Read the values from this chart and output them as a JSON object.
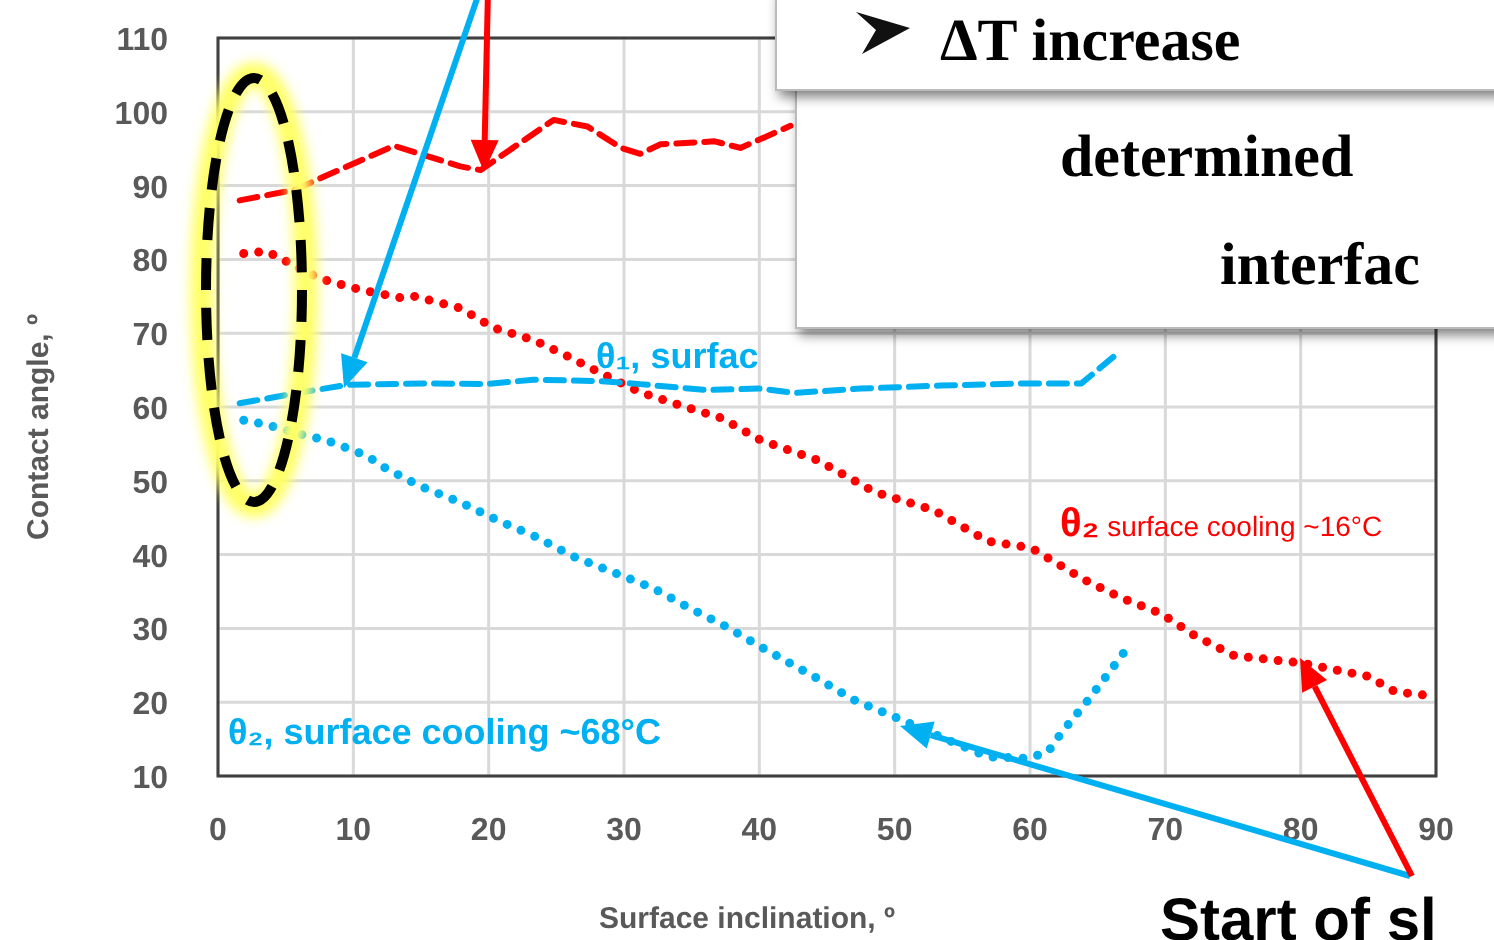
{
  "chart_data": {
    "type": "line",
    "xlabel": "Surface inclination, º",
    "ylabel": "Contact angle, º",
    "xlim": [
      0,
      90
    ],
    "ylim": [
      10,
      110
    ],
    "xticks": [
      0,
      10,
      20,
      30,
      40,
      50,
      60,
      70,
      80,
      90
    ],
    "yticks": [
      10,
      20,
      30,
      40,
      50,
      60,
      70,
      80,
      90,
      100,
      110
    ],
    "grid": true,
    "marker": "none",
    "series": [
      {
        "color": "#ff0000",
        "line_style": "dashed",
        "x": [
          1.6,
          5.6,
          13,
          17.9,
          19.4,
          24.8,
          27.3,
          29.8,
          31.2,
          32.7,
          36.7,
          38.6,
          42.3
        ],
        "values": [
          88.0,
          89.4,
          95.4,
          92.6,
          92.1,
          98.9,
          98.0,
          95.1,
          94.3,
          95.6,
          96.0,
          95.1,
          98.1
        ]
      },
      {
        "name": "θ₂ surface cooling ~16°C",
        "color": "#ff0000",
        "line_style": "dotted",
        "x": [
          1.9,
          3.6,
          7.5,
          10.5,
          13.5,
          14.5,
          17.9,
          20.4,
          23.3,
          25.8,
          28.5,
          31.2,
          34.2,
          37.2,
          40.1,
          44.3,
          48.5,
          52.9,
          56.9,
          60.1,
          64.0,
          66.8,
          69.7,
          72.2,
          75.1,
          78.1,
          80.1,
          82.5,
          85.0,
          87.0,
          90.0
        ],
        "values": [
          80.8,
          81.1,
          77.4,
          75.9,
          74.8,
          75.0,
          73.4,
          70.7,
          69.1,
          66.9,
          64.4,
          62.0,
          60.2,
          58.5,
          55.5,
          52.8,
          48.5,
          46.0,
          41.8,
          40.9,
          36.6,
          34.1,
          32.0,
          29.0,
          26.3,
          25.7,
          25.3,
          24.4,
          23.5,
          21.4,
          20.8
        ]
      },
      {
        "name": "θ₁, surfac",
        "color": "#00b0f0",
        "line_style": "dashed",
        "x": [
          1.6,
          5.6,
          9.5,
          15.4,
          19.8,
          23.3,
          28.3,
          31.2,
          36.1,
          40.1,
          42.6,
          47.5,
          53.4,
          59.4,
          63.8,
          66.5
        ],
        "values": [
          60.5,
          61.8,
          63.0,
          63.2,
          63.1,
          63.7,
          63.5,
          63.1,
          62.3,
          62.5,
          61.9,
          62.5,
          62.9,
          63.2,
          63.2,
          67.3
        ]
      },
      {
        "name": "θ₂, surface cooling ~68°C",
        "color": "#00b0f0",
        "line_style": "dotted",
        "x": [
          1.9,
          3.6,
          6.3,
          8.0,
          11.0,
          12.2,
          14.9,
          17.9,
          20.6,
          23.5,
          26.3,
          29.2,
          32.1,
          34.8,
          37.6,
          40.1,
          44.3,
          47.0,
          50.0,
          53.9,
          56.9,
          59.8,
          61.3,
          62.3,
          64.3,
          66.0,
          67.0
        ],
        "values": [
          58.2,
          57.6,
          56.2,
          55.5,
          53.4,
          51.9,
          49.3,
          47.1,
          44.7,
          42.4,
          39.7,
          37.6,
          35.5,
          32.8,
          30.2,
          27.5,
          23.2,
          20.3,
          18.0,
          14.9,
          12.6,
          12.4,
          13.2,
          15.8,
          20.3,
          24.4,
          26.9
        ]
      }
    ],
    "annotations": [
      "ΔT increase",
      "determined",
      "interfac",
      "Start of sl"
    ]
  }
}
